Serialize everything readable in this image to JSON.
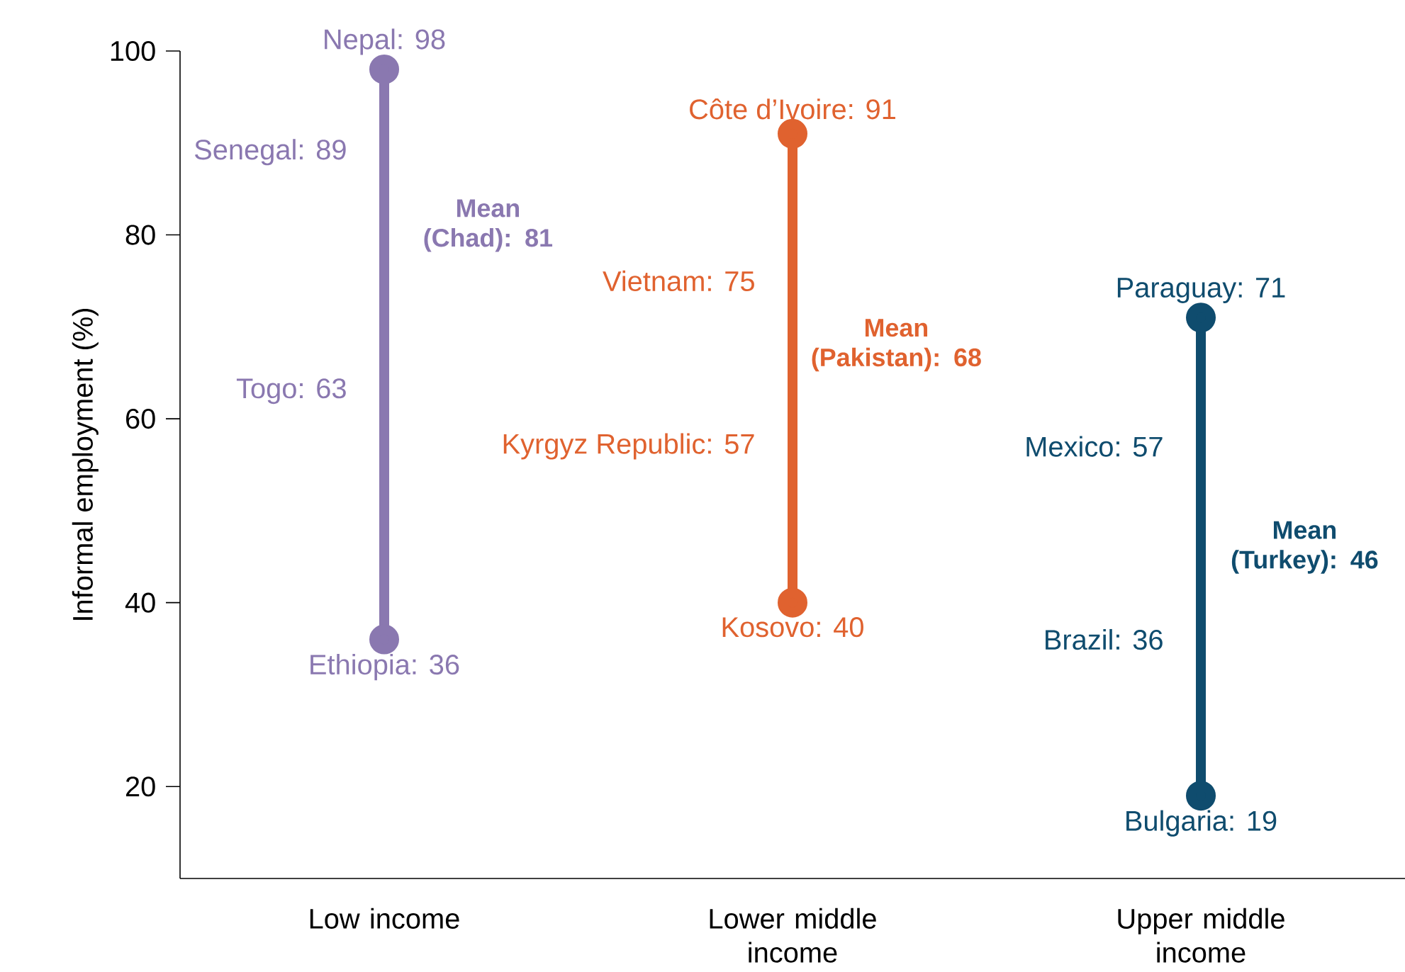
{
  "chart_data": {
    "type": "line",
    "ylabel": "Informal employment (%)",
    "categories": [
      "Low income",
      "Lower middle income",
      "Upper middle income"
    ],
    "series": [
      {
        "color": "#8a78b0",
        "x": [
          "Low income",
          "Low income"
        ],
        "values": [
          36,
          98
        ]
      },
      {
        "color": "#e0622f",
        "x": [
          "Lower middle income",
          "Lower middle income"
        ],
        "values": [
          40,
          91
        ]
      },
      {
        "color": "#0f4c6e",
        "x": [
          "Upper middle income",
          "Upper middle income"
        ],
        "values": [
          19,
          71
        ]
      }
    ],
    "marker": "circle",
    "line_style": "solid",
    "ylim": [
      10,
      100
    ],
    "yticks": [
      20,
      40,
      60,
      80,
      100
    ],
    "annotations": [
      {
        "text": "Nepal: 98",
        "x": "Low income",
        "y": 98
      },
      {
        "text": "Senegal: 89",
        "x": "Low income",
        "y": 89
      },
      {
        "text": "Togo: 63",
        "x": "Low income",
        "y": 63
      },
      {
        "text": "Ethiopia: 36",
        "x": "Low income",
        "y": 36
      },
      {
        "text": "Côte d’Ivoire: 91",
        "x": "Lower middle income",
        "y": 91
      },
      {
        "text": "Vietnam: 75",
        "x": "Lower middle income",
        "y": 75
      },
      {
        "text": "Kyrgyz Republic: 57",
        "x": "Lower middle income",
        "y": 57
      },
      {
        "text": "Kosovo: 40",
        "x": "Lower middle income",
        "y": 40
      },
      {
        "text": "Paraguay: 71",
        "x": "Upper middle income",
        "y": 71
      },
      {
        "text": "Mexico: 57",
        "x": "Upper middle income",
        "y": 57
      },
      {
        "text": "Brazil: 36",
        "x": "Upper middle income",
        "y": 36
      },
      {
        "text": "Bulgaria: 19",
        "x": "Upper middle income",
        "y": 19
      },
      {
        "text": "Mean (Chad): 81",
        "x": "Low income",
        "y": 81
      },
      {
        "text": "Mean (Pakistan): 68",
        "x": "Lower middle income",
        "y": 68
      },
      {
        "text": "Mean (Turkey): 46",
        "x": "Upper middle income",
        "y": 46
      }
    ]
  }
}
